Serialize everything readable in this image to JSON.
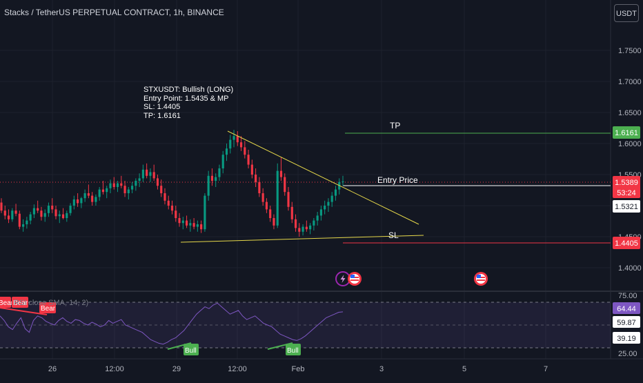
{
  "header": {
    "title": "Stacks / TetherUS PERPETUAL CONTRACT, 1h, BINANCE",
    "currency_button": "USDT"
  },
  "trade_note": {
    "lines": [
      "STXUSDT: Bullish (LONG)",
      "Entry Point: 1.5435 & MP",
      "SL: 1.4405",
      "TP: 1.6161"
    ]
  },
  "annotations": {
    "tp_label": "TP",
    "entry_label": "Entry Price",
    "sl_label": "SL"
  },
  "price_axis": {
    "ticks": [
      "1.7500",
      "1.7000",
      "1.6500",
      "1.6000",
      "1.5500",
      "1.4500",
      "1.4000"
    ],
    "badges": {
      "tp": "1.6161",
      "last": "1.5389",
      "countdown": "53:24",
      "secondary": "1.5321",
      "sl": "1.4405"
    }
  },
  "time_axis": {
    "ticks": [
      "26",
      "12:00",
      "29",
      "12:00",
      "Feb",
      "3",
      "5",
      "7"
    ]
  },
  "rsi_panel": {
    "legend": "RSI  close  SMA, 14, 2)",
    "axis_ticks": [
      "75.00",
      "25.00"
    ],
    "badges": {
      "rsi": "64.44",
      "upper": "59.87",
      "lower": "39.19"
    },
    "divergence_labels": {
      "bear": "Bear",
      "bull": "Bull"
    }
  },
  "colors": {
    "background": "#131722",
    "up_candle": "#089981",
    "down_candle": "#f23645",
    "tp_line": "#4caf50",
    "sl_line": "#f23645",
    "entry_line": "#ffffff",
    "trendline": "#e6d84a",
    "rsi_line": "#7e57c2",
    "rsi_band": "#7e57c2"
  },
  "icons": [
    "lightning-event-icon",
    "us-flag-event-icon",
    "us-flag-event-icon"
  ],
  "chart_data": {
    "type": "candlestick",
    "y_range": [
      1.36,
      1.79
    ],
    "tp": 1.6161,
    "entry": 1.5389,
    "sl": 1.4405,
    "candles": [
      [
        1.505,
        1.512,
        1.488,
        1.492
      ],
      [
        1.492,
        1.5,
        1.478,
        1.484
      ],
      [
        1.484,
        1.494,
        1.472,
        1.478
      ],
      [
        1.478,
        1.496,
        1.474,
        1.492
      ],
      [
        1.492,
        1.503,
        1.483,
        1.487
      ],
      [
        1.487,
        1.492,
        1.462,
        1.466
      ],
      [
        1.466,
        1.478,
        1.458,
        1.47
      ],
      [
        1.47,
        1.482,
        1.463,
        1.476
      ],
      [
        1.476,
        1.49,
        1.47,
        1.486
      ],
      [
        1.486,
        1.502,
        1.48,
        1.496
      ],
      [
        1.496,
        1.508,
        1.488,
        1.492
      ],
      [
        1.492,
        1.498,
        1.476,
        1.482
      ],
      [
        1.482,
        1.494,
        1.474,
        1.488
      ],
      [
        1.488,
        1.505,
        1.482,
        1.5
      ],
      [
        1.5,
        1.512,
        1.488,
        1.494
      ],
      [
        1.494,
        1.5,
        1.478,
        1.483
      ],
      [
        1.483,
        1.492,
        1.472,
        1.486
      ],
      [
        1.486,
        1.496,
        1.478,
        1.48
      ],
      [
        1.48,
        1.492,
        1.474,
        1.488
      ],
      [
        1.488,
        1.504,
        1.484,
        1.5
      ],
      [
        1.5,
        1.516,
        1.494,
        1.51
      ],
      [
        1.51,
        1.52,
        1.498,
        1.504
      ],
      [
        1.504,
        1.514,
        1.496,
        1.512
      ],
      [
        1.512,
        1.526,
        1.506,
        1.52
      ],
      [
        1.52,
        1.534,
        1.512,
        1.516
      ],
      [
        1.516,
        1.522,
        1.5,
        1.506
      ],
      [
        1.506,
        1.518,
        1.5,
        1.514
      ],
      [
        1.514,
        1.53,
        1.508,
        1.526
      ],
      [
        1.526,
        1.54,
        1.518,
        1.522
      ],
      [
        1.522,
        1.532,
        1.512,
        1.528
      ],
      [
        1.528,
        1.542,
        1.52,
        1.536
      ],
      [
        1.536,
        1.546,
        1.526,
        1.53
      ],
      [
        1.53,
        1.54,
        1.522,
        1.536
      ],
      [
        1.536,
        1.548,
        1.528,
        1.532
      ],
      [
        1.532,
        1.54,
        1.514,
        1.52
      ],
      [
        1.52,
        1.53,
        1.51,
        1.526
      ],
      [
        1.526,
        1.538,
        1.52,
        1.532
      ],
      [
        1.532,
        1.544,
        1.524,
        1.54
      ],
      [
        1.54,
        1.552,
        1.53,
        1.544
      ],
      [
        1.544,
        1.566,
        1.538,
        1.558
      ],
      [
        1.558,
        1.568,
        1.544,
        1.548
      ],
      [
        1.548,
        1.56,
        1.538,
        1.554
      ],
      [
        1.554,
        1.566,
        1.54,
        1.544
      ],
      [
        1.544,
        1.55,
        1.526,
        1.532
      ],
      [
        1.532,
        1.542,
        1.514,
        1.52
      ],
      [
        1.52,
        1.528,
        1.502,
        1.508
      ],
      [
        1.508,
        1.516,
        1.494,
        1.5
      ],
      [
        1.5,
        1.508,
        1.486,
        1.492
      ],
      [
        1.492,
        1.5,
        1.474,
        1.48
      ],
      [
        1.48,
        1.488,
        1.466,
        1.472
      ],
      [
        1.472,
        1.482,
        1.462,
        1.476
      ],
      [
        1.476,
        1.484,
        1.464,
        1.468
      ],
      [
        1.468,
        1.478,
        1.458,
        1.472
      ],
      [
        1.472,
        1.48,
        1.462,
        1.466
      ],
      [
        1.466,
        1.476,
        1.458,
        1.47
      ],
      [
        1.47,
        1.476,
        1.456,
        1.462
      ],
      [
        1.462,
        1.52,
        1.458,
        1.516
      ],
      [
        1.516,
        1.556,
        1.508,
        1.548
      ],
      [
        1.548,
        1.56,
        1.532,
        1.54
      ],
      [
        1.54,
        1.552,
        1.53,
        1.546
      ],
      [
        1.546,
        1.566,
        1.54,
        1.56
      ],
      [
        1.56,
        1.588,
        1.552,
        1.582
      ],
      [
        1.582,
        1.6,
        1.572,
        1.592
      ],
      [
        1.592,
        1.614,
        1.584,
        1.606
      ],
      [
        1.606,
        1.622,
        1.594,
        1.612
      ],
      [
        1.612,
        1.62,
        1.596,
        1.602
      ],
      [
        1.602,
        1.612,
        1.588,
        1.594
      ],
      [
        1.594,
        1.604,
        1.576,
        1.582
      ],
      [
        1.582,
        1.59,
        1.56,
        1.566
      ],
      [
        1.566,
        1.574,
        1.544,
        1.55
      ],
      [
        1.55,
        1.56,
        1.53,
        1.538
      ],
      [
        1.538,
        1.546,
        1.514,
        1.52
      ],
      [
        1.52,
        1.528,
        1.5,
        1.506
      ],
      [
        1.506,
        1.512,
        1.488,
        1.494
      ],
      [
        1.494,
        1.5,
        1.474,
        1.48
      ],
      [
        1.48,
        1.486,
        1.462,
        1.468
      ],
      [
        1.468,
        1.568,
        1.464,
        1.556
      ],
      [
        1.556,
        1.578,
        1.54,
        1.546
      ],
      [
        1.546,
        1.552,
        1.516,
        1.522
      ],
      [
        1.522,
        1.53,
        1.492,
        1.498
      ],
      [
        1.498,
        1.506,
        1.472,
        1.478
      ],
      [
        1.478,
        1.486,
        1.458,
        1.464
      ],
      [
        1.464,
        1.472,
        1.45,
        1.458
      ],
      [
        1.458,
        1.47,
        1.452,
        1.466
      ],
      [
        1.466,
        1.476,
        1.458,
        1.462
      ],
      [
        1.462,
        1.472,
        1.454,
        1.468
      ],
      [
        1.468,
        1.48,
        1.46,
        1.476
      ],
      [
        1.476,
        1.49,
        1.468,
        1.484
      ],
      [
        1.484,
        1.5,
        1.476,
        1.494
      ],
      [
        1.494,
        1.508,
        1.486,
        1.5
      ],
      [
        1.5,
        1.512,
        1.49,
        1.506
      ],
      [
        1.506,
        1.522,
        1.498,
        1.516
      ],
      [
        1.516,
        1.532,
        1.508,
        1.526
      ],
      [
        1.526,
        1.544,
        1.518,
        1.538
      ],
      [
        1.538,
        1.548,
        1.532,
        1.539
      ]
    ],
    "rsi": [
      60,
      55,
      48,
      45,
      52,
      58,
      46,
      42,
      55,
      60,
      58,
      54,
      52,
      50,
      55,
      58,
      54,
      52,
      56,
      55,
      52,
      50,
      53,
      51,
      48,
      50,
      55,
      52,
      54,
      56,
      50,
      48,
      46,
      44,
      42,
      38,
      34,
      32,
      30,
      29,
      31,
      34,
      36,
      40,
      44,
      50,
      56,
      62,
      66,
      70,
      68,
      72,
      74,
      70,
      66,
      62,
      64,
      66,
      60,
      56,
      58,
      60,
      56,
      52,
      50,
      48,
      44,
      40,
      38,
      36,
      34,
      33,
      35,
      38,
      42,
      46,
      50,
      54,
      58,
      60,
      62,
      64,
      64.44
    ]
  }
}
